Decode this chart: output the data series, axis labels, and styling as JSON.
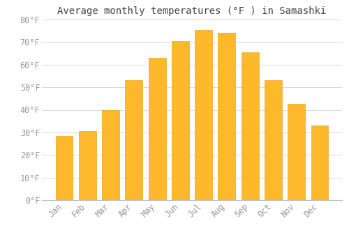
{
  "title": "Average monthly temperatures (°F ) in Samashki",
  "months": [
    "Jan",
    "Feb",
    "Mar",
    "Apr",
    "May",
    "Jun",
    "Jul",
    "Aug",
    "Sep",
    "Oct",
    "Nov",
    "Dec"
  ],
  "values": [
    28.5,
    30.5,
    40.0,
    53.0,
    63.0,
    70.5,
    75.5,
    74.0,
    65.5,
    53.0,
    42.5,
    33.0
  ],
  "bar_color": "#FDB82B",
  "bar_edge_color": "#E8980A",
  "background_color": "#FFFFFF",
  "grid_color": "#DDDDDD",
  "text_color": "#999999",
  "title_color": "#444444",
  "ylim": [
    0,
    80
  ],
  "yticks": [
    0,
    10,
    20,
    30,
    40,
    50,
    60,
    70,
    80
  ],
  "title_fontsize": 10,
  "tick_fontsize": 8.5
}
